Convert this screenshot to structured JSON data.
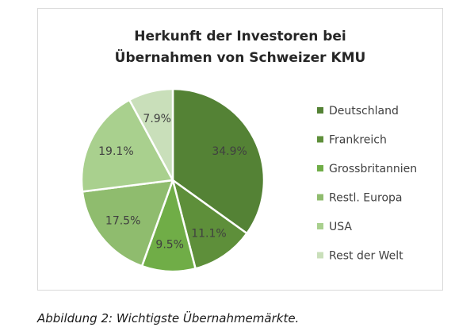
{
  "chart_data": {
    "type": "pie",
    "title_lines": [
      "Herkunft der Investoren bei",
      "Übernahmen von Schweizer KMU"
    ],
    "categories": [
      "Deutschland",
      "Frankreich",
      "Grossbritannien",
      "Restl. Europa",
      "USA",
      "Rest der Welt"
    ],
    "values": [
      34.9,
      11.1,
      9.5,
      17.5,
      19.1,
      7.9
    ],
    "labels": [
      "34.9%",
      "11.1%",
      "9.5%",
      "17.5%",
      "19.1%",
      "7.9%"
    ],
    "colors": [
      "#548235",
      "#5e8f3a",
      "#70ad47",
      "#8fbc6e",
      "#a9d08e",
      "#c9dfba"
    ],
    "legend_position": "right"
  },
  "caption": "Abbildung 2: Wichtigste Übernahmemärkte."
}
